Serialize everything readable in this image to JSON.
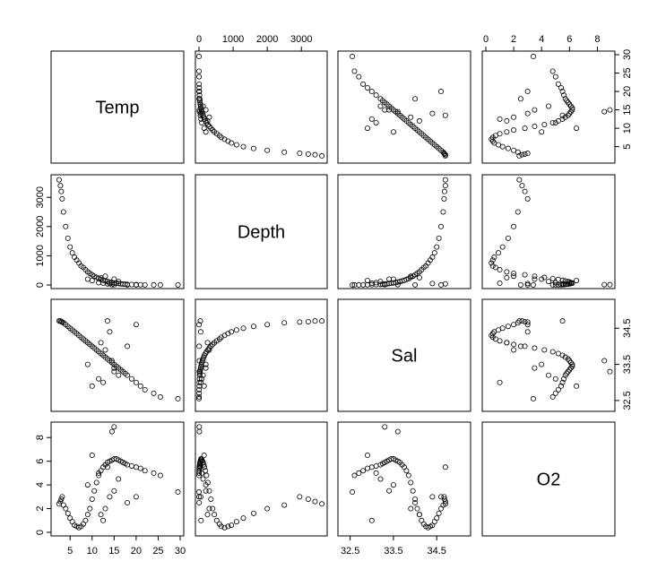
{
  "chart_data": {
    "type": "scatter",
    "subtype": "pairs-scatterplot-matrix",
    "title": "",
    "variables": [
      "Temp",
      "Depth",
      "Sal",
      "O2"
    ],
    "ranges": {
      "Temp": [
        1.5,
        30
      ],
      "Depth": [
        0,
        3650
      ],
      "Sal": [
        32.3,
        35.2
      ],
      "O2": [
        0,
        9
      ]
    },
    "ticks": {
      "Temp": {
        "values": [
          5,
          10,
          15,
          20,
          25,
          30
        ],
        "labels": [
          "5",
          "10",
          "15",
          "20",
          "25",
          "30"
        ]
      },
      "Depth": {
        "values": [
          0,
          1000,
          2000,
          3000
        ],
        "labels": [
          "0",
          "1000",
          "2000",
          "3000"
        ]
      },
      "Sal": {
        "values": [
          32.5,
          33.5,
          34.5
        ],
        "labels": [
          "32.5",
          "33.5",
          "34.5"
        ]
      },
      "O2": {
        "values": [
          0,
          2,
          4,
          6,
          8
        ],
        "labels": [
          "0",
          "2",
          "4",
          "6",
          "8"
        ]
      }
    },
    "grid": false,
    "legend": "none",
    "points": [
      [
        2.5,
        3600,
        34.7,
        2.4
      ],
      [
        2.8,
        3400,
        34.7,
        2.6
      ],
      [
        3.0,
        3200,
        34.68,
        2.8
      ],
      [
        3.2,
        2950,
        34.67,
        3.0
      ],
      [
        3.5,
        2500,
        34.65,
        2.3
      ],
      [
        4.0,
        2000,
        34.6,
        2.0
      ],
      [
        4.5,
        1600,
        34.55,
        1.6
      ],
      [
        5.0,
        1300,
        34.5,
        1.2
      ],
      [
        5.5,
        1100,
        34.45,
        0.9
      ],
      [
        6.0,
        950,
        34.4,
        0.6
      ],
      [
        6.5,
        850,
        34.35,
        0.5
      ],
      [
        7.0,
        750,
        34.3,
        0.4
      ],
      [
        7.5,
        650,
        34.25,
        0.5
      ],
      [
        8.0,
        600,
        34.2,
        0.7
      ],
      [
        8.5,
        520,
        34.15,
        1.0
      ],
      [
        9.0,
        450,
        34.1,
        1.5
      ],
      [
        9.5,
        400,
        34.05,
        2.0
      ],
      [
        10.0,
        350,
        34.0,
        2.8
      ],
      [
        10.5,
        300,
        33.95,
        3.5
      ],
      [
        11.0,
        260,
        33.9,
        4.2
      ],
      [
        11.5,
        220,
        33.85,
        4.8
      ],
      [
        12.0,
        190,
        33.8,
        5.2
      ],
      [
        12.5,
        160,
        33.75,
        5.5
      ],
      [
        13.0,
        140,
        33.7,
        5.7
      ],
      [
        13.5,
        120,
        33.65,
        5.9
      ],
      [
        14.0,
        100,
        33.6,
        6.0
      ],
      [
        14.5,
        85,
        33.55,
        6.1
      ],
      [
        15.0,
        70,
        33.5,
        6.2
      ],
      [
        15.5,
        60,
        33.45,
        6.2
      ],
      [
        16.0,
        50,
        33.4,
        6.1
      ],
      [
        16.5,
        40,
        33.35,
        6.0
      ],
      [
        17.0,
        30,
        33.3,
        5.9
      ],
      [
        17.5,
        25,
        33.25,
        5.8
      ],
      [
        18.0,
        20,
        33.2,
        5.7
      ],
      [
        19.0,
        15,
        33.1,
        5.6
      ],
      [
        20.0,
        10,
        33.0,
        5.5
      ],
      [
        21.0,
        8,
        32.9,
        5.4
      ],
      [
        22.0,
        5,
        32.8,
        5.2
      ],
      [
        24.0,
        3,
        32.7,
        5.0
      ],
      [
        25.5,
        2,
        32.6,
        4.8
      ],
      [
        29.5,
        1,
        32.55,
        3.4
      ],
      [
        13.0,
        300,
        33.9,
        2.0
      ],
      [
        12.0,
        250,
        34.1,
        1.5
      ],
      [
        15.0,
        200,
        33.4,
        3.5
      ],
      [
        11.5,
        80,
        33.1,
        5.0
      ],
      [
        14.0,
        50,
        34.4,
        3.0
      ],
      [
        10.0,
        150,
        32.9,
        6.5
      ],
      [
        16.0,
        120,
        33.2,
        4.5
      ],
      [
        13.5,
        40,
        34.7,
        5.5
      ],
      [
        12.5,
        60,
        33.0,
        1.0
      ],
      [
        15.0,
        10,
        33.3,
        8.9
      ],
      [
        14.5,
        12,
        33.6,
        8.5
      ],
      [
        9.0,
        200,
        33.5,
        4.0
      ],
      [
        18.0,
        5,
        34.0,
        2.5
      ],
      [
        20.0,
        2,
        34.6,
        3.0
      ]
    ]
  }
}
